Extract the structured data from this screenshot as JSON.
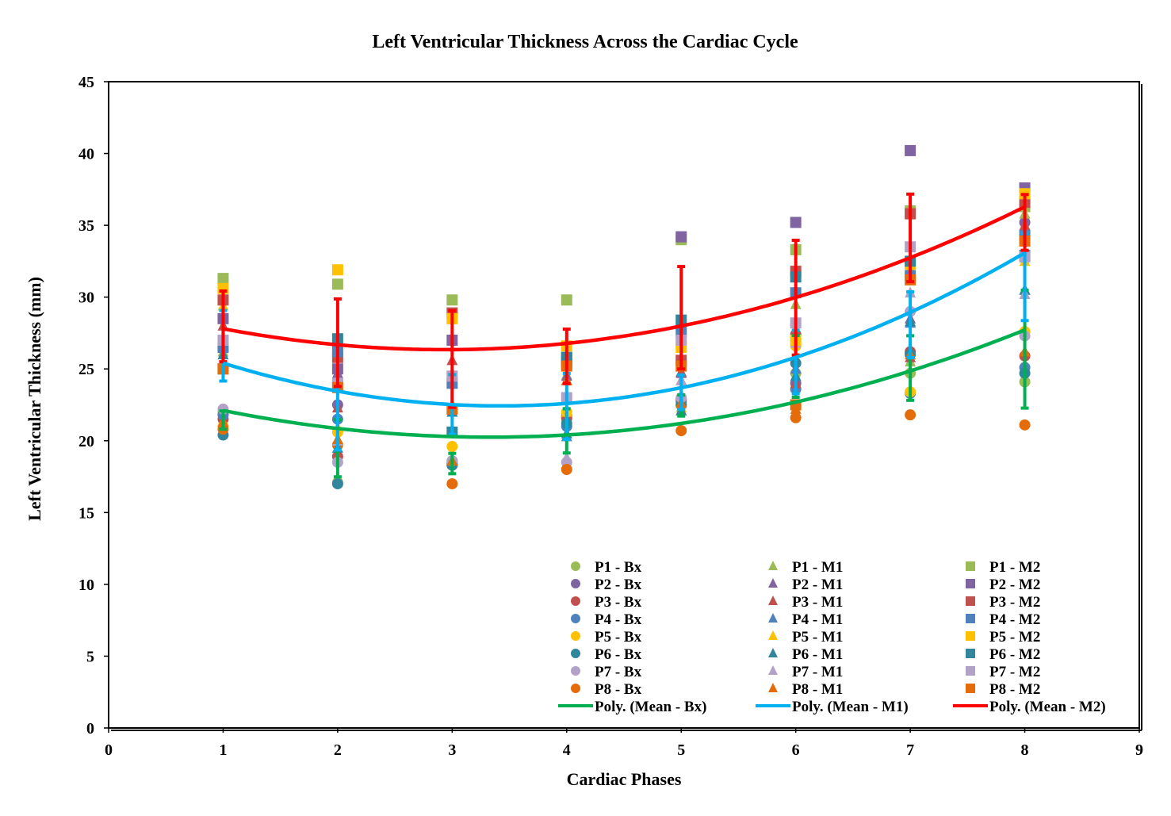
{
  "chart_data": {
    "type": "scatter",
    "title": "Left Ventricular Thickness Across the Cardiac Cycle",
    "xlabel": "Cardiac Phases",
    "ylabel": "Left Ventricular Thickness (mm)",
    "xlim": [
      0,
      9
    ],
    "ylim": [
      0,
      45
    ],
    "xticks": [
      "0",
      "1",
      "2",
      "3",
      "4",
      "5",
      "6",
      "7",
      "8",
      "9"
    ],
    "yticks": [
      "0",
      "5",
      "10",
      "15",
      "20",
      "25",
      "30",
      "35",
      "40",
      "45"
    ],
    "grid": false,
    "legend_placement": "bottom-right",
    "x": [
      1,
      2,
      3,
      4,
      5,
      6,
      7,
      8
    ],
    "patient_colors": {
      "P1": "#9BBB59",
      "P2": "#8064A2",
      "P3": "#C0504D",
      "P4": "#4F81BD",
      "P5": "#FFC000",
      "P6": "#31859C",
      "P7": "#B3A2C7",
      "P8": "#E46C0A"
    },
    "series": [
      {
        "name": "P1 - Bx",
        "patient": "P1",
        "group": "Bx",
        "marker": "circle",
        "values": [
          22.0,
          17.1,
          18.5,
          21.5,
          22.5,
          24.7,
          24.7,
          24.1
        ]
      },
      {
        "name": "P2 - Bx",
        "patient": "P2",
        "group": "Bx",
        "marker": "circle",
        "values": [
          21.8,
          22.5,
          18.4,
          21.7,
          22.9,
          24.0,
          26.1,
          35.2
        ]
      },
      {
        "name": "P3 - Bx",
        "patient": "P3",
        "group": "Bx",
        "marker": "circle",
        "values": [
          21.5,
          18.9,
          18.3,
          21.6,
          22.8,
          27.4,
          26.2,
          25.9
        ]
      },
      {
        "name": "P4 - Bx",
        "patient": "P4",
        "group": "Bx",
        "marker": "circle",
        "values": [
          21.8,
          21.5,
          18.6,
          21.0,
          22.7,
          23.6,
          23.3,
          25.1
        ]
      },
      {
        "name": "P5 - Bx",
        "patient": "P5",
        "group": "Bx",
        "marker": "circle",
        "values": [
          21.0,
          20.6,
          19.6,
          22.0,
          22.5,
          26.6,
          23.4,
          27.6
        ]
      },
      {
        "name": "P6 - Bx",
        "patient": "P6",
        "group": "Bx",
        "marker": "circle",
        "values": [
          20.4,
          17.0,
          18.3,
          21.2,
          22.5,
          25.4,
          26.0,
          24.7
        ]
      },
      {
        "name": "P7 - Bx",
        "patient": "P7",
        "group": "Bx",
        "marker": "circle",
        "values": [
          22.2,
          18.5,
          18.6,
          18.5,
          23.0,
          28.1,
          29.0,
          27.3
        ]
      },
      {
        "name": "P8 - Bx",
        "patient": "P8",
        "group": "Bx",
        "marker": "circle",
        "values": [
          20.8,
          19.7,
          17.0,
          18.0,
          20.7,
          21.6,
          21.8,
          21.1
        ]
      },
      {
        "name": "P1 - M1",
        "patient": "P1",
        "group": "M1",
        "marker": "triangle",
        "values": [
          26.2,
          20.0,
          22.5,
          24.6,
          22.1,
          29.5,
          25.5,
          35.8
        ]
      },
      {
        "name": "P2 - M1",
        "patient": "P2",
        "group": "M1",
        "marker": "triangle",
        "values": [
          28.5,
          24.7,
          22.0,
          24.5,
          24.7,
          25.0,
          28.5,
          30.5
        ]
      },
      {
        "name": "P3 - M1",
        "patient": "P3",
        "group": "M1",
        "marker": "triangle",
        "values": [
          28.0,
          22.3,
          25.6,
          24.2,
          24.8,
          24.0,
          25.8,
          35.0
        ]
      },
      {
        "name": "P4 - M1",
        "patient": "P4",
        "group": "M1",
        "marker": "triangle",
        "values": [
          26.5,
          25.0,
          22.3,
          20.3,
          24.2,
          25.0,
          28.2,
          30.5
        ]
      },
      {
        "name": "P5 - M1",
        "patient": "P5",
        "group": "M1",
        "marker": "triangle",
        "values": [
          29.4,
          20.9,
          22.5,
          22.0,
          22.3,
          26.8,
          32.0,
          32.5
        ]
      },
      {
        "name": "P6 - M1",
        "patient": "P6",
        "group": "M1",
        "marker": "triangle",
        "values": [
          26.0,
          19.5,
          22.0,
          20.5,
          22.1,
          24.5,
          28.3,
          30.5
        ]
      },
      {
        "name": "P7 - M1",
        "patient": "P7",
        "group": "M1",
        "marker": "triangle",
        "values": [
          27.0,
          20.0,
          24.7,
          18.8,
          24.2,
          26.8,
          30.3,
          30.2
        ]
      },
      {
        "name": "P8 - M1",
        "patient": "P8",
        "group": "M1",
        "marker": "triangle",
        "values": [
          21.3,
          20.1,
          18.6,
          24.2,
          22.6,
          22.2,
          26.0,
          26.2
        ]
      },
      {
        "name": "P1 - M2",
        "patient": "P1",
        "group": "M2",
        "marker": "square",
        "values": [
          31.3,
          30.9,
          29.8,
          29.8,
          34.0,
          33.3,
          36.0,
          36.3
        ]
      },
      {
        "name": "P2 - M2",
        "patient": "P2",
        "group": "M2",
        "marker": "square",
        "values": [
          28.5,
          25.0,
          27.0,
          25.3,
          34.2,
          35.2,
          40.2,
          37.6
        ]
      },
      {
        "name": "P3 - M2",
        "patient": "P3",
        "group": "M2",
        "marker": "square",
        "values": [
          29.8,
          25.8,
          28.9,
          25.5,
          25.6,
          31.8,
          35.8,
          36.6
        ]
      },
      {
        "name": "P4 - M2",
        "patient": "P4",
        "group": "M2",
        "marker": "square",
        "values": [
          26.5,
          26.2,
          24.0,
          25.8,
          27.6,
          30.3,
          31.5,
          34.3
        ]
      },
      {
        "name": "P5 - M2",
        "patient": "P5",
        "group": "M2",
        "marker": "square",
        "values": [
          30.6,
          31.9,
          28.5,
          26.6,
          26.5,
          27.0,
          32.3,
          37.2
        ]
      },
      {
        "name": "P6 - M2",
        "patient": "P6",
        "group": "M2",
        "marker": "square",
        "values": [
          25.0,
          27.1,
          20.6,
          25.8,
          28.4,
          31.4,
          32.5,
          32.9
        ]
      },
      {
        "name": "P7 - M2",
        "patient": "P7",
        "group": "M2",
        "marker": "square",
        "values": [
          27.0,
          24.0,
          24.5,
          23.0,
          27.0,
          28.2,
          33.5,
          32.8
        ]
      },
      {
        "name": "P8 - M2",
        "patient": "P8",
        "group": "M2",
        "marker": "square",
        "values": [
          25.0,
          23.7,
          22.2,
          25.2,
          25.2,
          22.5,
          31.2,
          33.9
        ]
      }
    ],
    "trendlines": [
      {
        "name": "Poly. (Mean - Bx)",
        "group": "Bx",
        "color": "#00B050",
        "type": "polynomial-2",
        "coefficients": [
          0.342,
          -2.277,
          24.04
        ]
      },
      {
        "name": "Poly. (Mean - M1)",
        "group": "M1",
        "color": "#00B0F0",
        "type": "polynomial-2",
        "coefficients": [
          0.508,
          -3.475,
          28.37
        ]
      },
      {
        "name": "Poly. (Mean - M2)",
        "group": "M2",
        "color": "#FF0000",
        "type": "polynomial-2",
        "coefficients": [
          0.388,
          -2.28,
          29.69
        ]
      }
    ],
    "error_bars": "mean ± SD per group"
  }
}
